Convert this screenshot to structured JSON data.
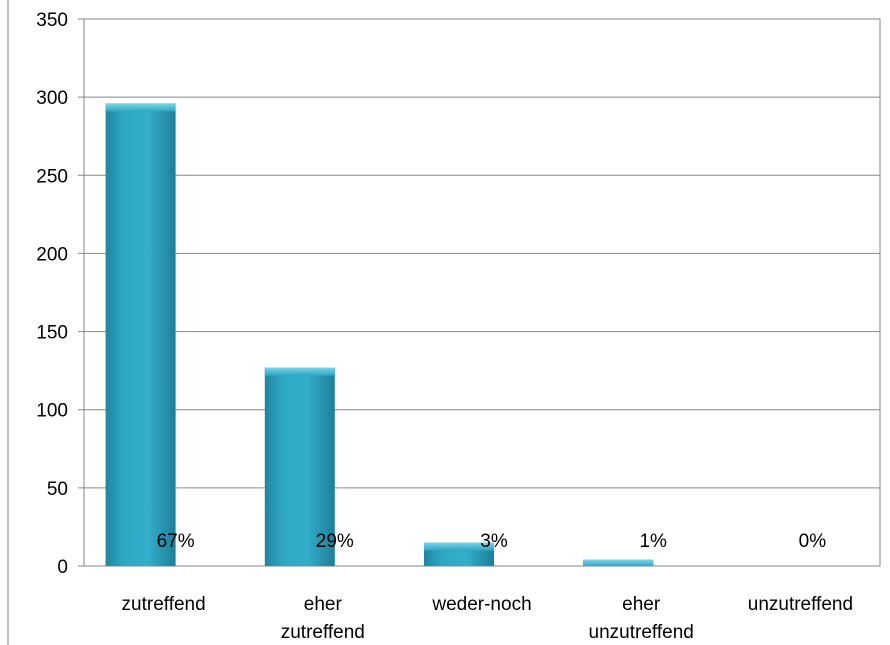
{
  "chart_data": {
    "type": "bar",
    "categories": [
      [
        "zutreffend"
      ],
      [
        "eher",
        "zutreffend"
      ],
      [
        "weder-noch"
      ],
      [
        "eher",
        "unzutreffend"
      ],
      [
        "unzutreffend"
      ]
    ],
    "values": [
      296,
      127,
      15,
      4,
      0
    ],
    "data_labels": [
      "67%",
      "29%",
      "3%",
      "1%",
      "0%"
    ],
    "ylim": [
      0,
      350
    ],
    "yticks": [
      0,
      50,
      100,
      150,
      200,
      250,
      300,
      350
    ],
    "grid": true,
    "legend": "none",
    "title": "",
    "xlabel": "",
    "ylabel": "",
    "colors": {
      "bar_main": "#2ea6c4",
      "bar_light": "#4fc2dc",
      "bar_dark": "#1d7f98",
      "grid": "#868686",
      "frame": "#868686"
    }
  }
}
